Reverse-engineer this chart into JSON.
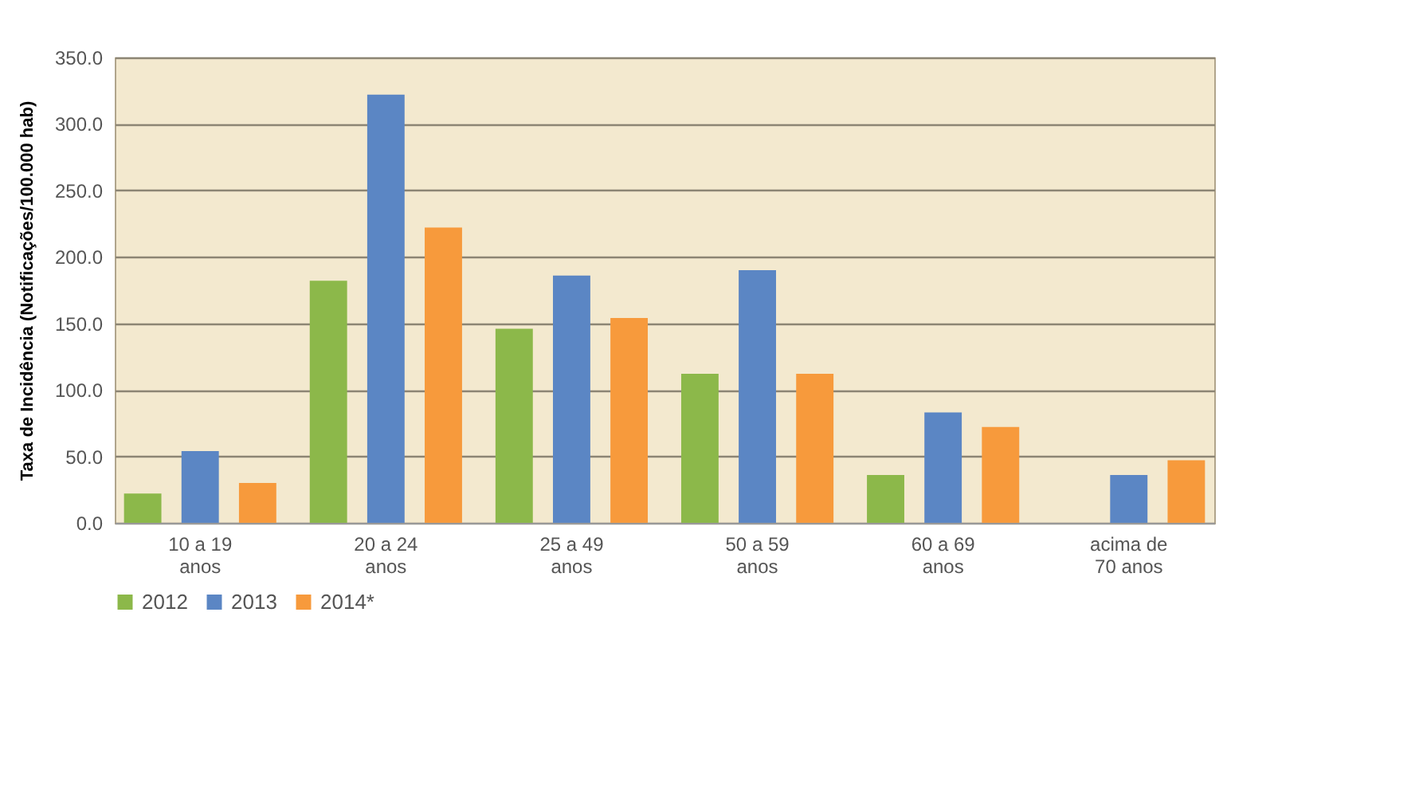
{
  "chart_data": {
    "type": "bar",
    "ylabel": "Taxa de Incidência (Notificações/100.000 hab)",
    "categories": [
      "10 a 19 anos",
      "20 a 24 anos",
      "25 a 49 anos",
      "50 a 59 anos",
      "60 a 69 anos",
      "acima de 70 anos"
    ],
    "series": [
      {
        "name": "2012",
        "color": "#8cb84a",
        "values": [
          22,
          182,
          146,
          112,
          36,
          null
        ]
      },
      {
        "name": "2013",
        "color": "#5b86c4",
        "values": [
          54,
          322,
          186,
          190,
          83,
          36
        ]
      },
      {
        "name": "2014*",
        "color": "#f79a3c",
        "values": [
          30,
          222,
          154,
          112,
          72,
          47
        ]
      }
    ],
    "ylim": [
      0,
      350
    ],
    "yticks": [
      {
        "value": 0,
        "label": "0.0"
      },
      {
        "value": 50,
        "label": "50.0"
      },
      {
        "value": 100,
        "label": "100.0"
      },
      {
        "value": 150,
        "label": "150.0"
      },
      {
        "value": 200,
        "label": "200.0"
      },
      {
        "value": 250,
        "label": "250.0"
      },
      {
        "value": 300,
        "label": "300.0"
      },
      {
        "value": 350,
        "label": "350.0"
      }
    ],
    "grid": "y",
    "legend": "bottom"
  }
}
